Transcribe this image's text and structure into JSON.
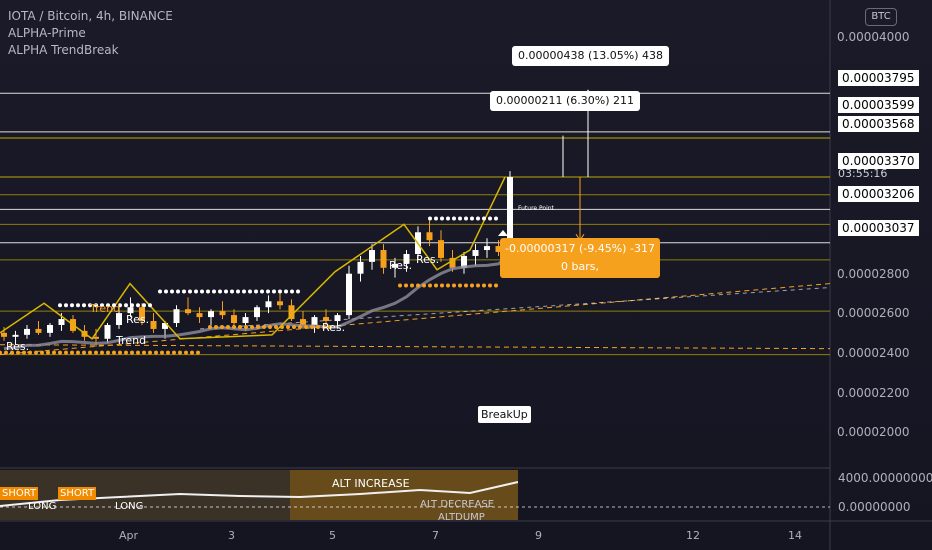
{
  "legend": {
    "symbol_line": "IOTA / Bitcoin, 4h, BINANCE",
    "indicator1": "ALPHA-Prime",
    "indicator2": "ALPHA TrendBreak"
  },
  "currency_badge": "BTC",
  "price_axis": {
    "ticks": [
      "0.00004000",
      "0.00002800",
      "0.00002600",
      "0.00002400",
      "0.00002200",
      "0.00002000"
    ],
    "highlighted": [
      "0.00003795",
      "0.00003599",
      "0.00003568",
      "0.00003370",
      "0.00003206",
      "0.00003037"
    ],
    "timer": "03:55:16"
  },
  "osc_axis": {
    "ticks": [
      "4000.00000000",
      "0.00000000"
    ]
  },
  "time_axis": {
    "ticks": [
      "Apr",
      "3",
      "5",
      "7",
      "9",
      "12",
      "14"
    ]
  },
  "measurements": {
    "upper": "0.00000438 (13.05%) 438",
    "middle": "0.00000211 (6.30%) 211",
    "lower_line1": "-0.00000317 (-9.45%) -317",
    "lower_line2": "0 bars,"
  },
  "chart_labels": {
    "res": "Res.",
    "trend": "Trend",
    "breakup": "BreakUp",
    "future_point": "Future Point"
  },
  "osc_labels": {
    "short": "SHORT",
    "long": "LONG",
    "alt_increase": "ALT INCREASE",
    "alt_decrease": "ALT DECREASE",
    "altdump": "ALTDUMP"
  },
  "colors": {
    "background": "#1a1a28",
    "accent": "#f5a11e",
    "level_line": "#b8a100",
    "white": "#ffffff"
  },
  "chart_data": {
    "type": "candlestick",
    "symbol": "IOTA / Bitcoin",
    "interval": "4h",
    "exchange": "BINANCE",
    "ylim": [
      1.9e-05,
      4.08e-05
    ],
    "last_price": 3.37e-05,
    "horizontal_levels": [
      3.795e-05,
      3.599e-05,
      3.568e-05,
      3.37e-05,
      3.206e-05,
      3.037e-05
    ],
    "x_ticks": [
      "Apr",
      "3",
      "5",
      "7",
      "9",
      "12",
      "14"
    ],
    "ohlc": [
      [
        2.58e-05,
        2.61e-05,
        2.54e-05,
        2.56e-05
      ],
      [
        2.56e-05,
        2.59e-05,
        2.52e-05,
        2.57e-05
      ],
      [
        2.57e-05,
        2.62e-05,
        2.55e-05,
        2.6e-05
      ],
      [
        2.6e-05,
        2.64e-05,
        2.57e-05,
        2.58e-05
      ],
      [
        2.58e-05,
        2.63e-05,
        2.56e-05,
        2.62e-05
      ],
      [
        2.62e-05,
        2.68e-05,
        2.59e-05,
        2.65e-05
      ],
      [
        2.65e-05,
        2.67e-05,
        2.58e-05,
        2.59e-05
      ],
      [
        2.59e-05,
        2.62e-05,
        2.54e-05,
        2.56e-05
      ],
      [
        2.56e-05,
        2.6e-05,
        2.51e-05,
        2.55e-05
      ],
      [
        2.55e-05,
        2.63e-05,
        2.53e-05,
        2.62e-05
      ],
      [
        2.62e-05,
        2.71e-05,
        2.6e-05,
        2.68e-05
      ],
      [
        2.68e-05,
        2.76e-05,
        2.66e-05,
        2.71e-05
      ],
      [
        2.71e-05,
        2.73e-05,
        2.62e-05,
        2.64e-05
      ],
      [
        2.64e-05,
        2.68e-05,
        2.58e-05,
        2.6e-05
      ],
      [
        2.6e-05,
        2.64e-05,
        2.55e-05,
        2.63e-05
      ],
      [
        2.63e-05,
        2.72e-05,
        2.61e-05,
        2.7e-05
      ],
      [
        2.7e-05,
        2.76e-05,
        2.67e-05,
        2.68e-05
      ],
      [
        2.68e-05,
        2.71e-05,
        2.63e-05,
        2.66e-05
      ],
      [
        2.66e-05,
        2.7e-05,
        2.62e-05,
        2.69e-05
      ],
      [
        2.69e-05,
        2.74e-05,
        2.65e-05,
        2.67e-05
      ],
      [
        2.67e-05,
        2.7e-05,
        2.62e-05,
        2.63e-05
      ],
      [
        2.63e-05,
        2.68e-05,
        2.59e-05,
        2.66e-05
      ],
      [
        2.66e-05,
        2.72e-05,
        2.64e-05,
        2.71e-05
      ],
      [
        2.71e-05,
        2.77e-05,
        2.68e-05,
        2.74e-05
      ],
      [
        2.74e-05,
        2.78e-05,
        2.7e-05,
        2.72e-05
      ],
      [
        2.72e-05,
        2.75e-05,
        2.64e-05,
        2.65e-05
      ],
      [
        2.65e-05,
        2.69e-05,
        2.6e-05,
        2.62e-05
      ],
      [
        2.62e-05,
        2.67e-05,
        2.58e-05,
        2.66e-05
      ],
      [
        2.66e-05,
        2.7e-05,
        2.62e-05,
        2.64e-05
      ],
      [
        2.64e-05,
        2.68e-05,
        2.6e-05,
        2.67e-05
      ],
      [
        2.67e-05,
        2.92e-05,
        2.65e-05,
        2.88e-05
      ],
      [
        2.88e-05,
        2.97e-05,
        2.84e-05,
        2.94e-05
      ],
      [
        2.94e-05,
        3.03e-05,
        2.9e-05,
        3e-05
      ],
      [
        3e-05,
        3.03e-05,
        2.88e-05,
        2.91e-05
      ],
      [
        2.91e-05,
        2.96e-05,
        2.86e-05,
        2.93e-05
      ],
      [
        2.93e-05,
        3e-05,
        2.89e-05,
        2.98e-05
      ],
      [
        2.98e-05,
        3.12e-05,
        2.95e-05,
        3.09e-05
      ],
      [
        3.09e-05,
        3.15e-05,
        3.02e-05,
        3.05e-05
      ],
      [
        3.05e-05,
        3.1e-05,
        2.94e-05,
        2.96e-05
      ],
      [
        2.96e-05,
        3e-05,
        2.89e-05,
        2.91e-05
      ],
      [
        2.91e-05,
        2.99e-05,
        2.88e-05,
        2.97e-05
      ],
      [
        2.97e-05,
        3.03e-05,
        2.92e-05,
        3e-05
      ],
      [
        3e-05,
        3.06e-05,
        2.96e-05,
        3.02e-05
      ],
      [
        3.02e-05,
        3.05e-05,
        2.97e-05,
        2.99e-05
      ],
      [
        2.99e-05,
        3.4e-05,
        2.97e-05,
        3.37e-05
      ]
    ]
  }
}
